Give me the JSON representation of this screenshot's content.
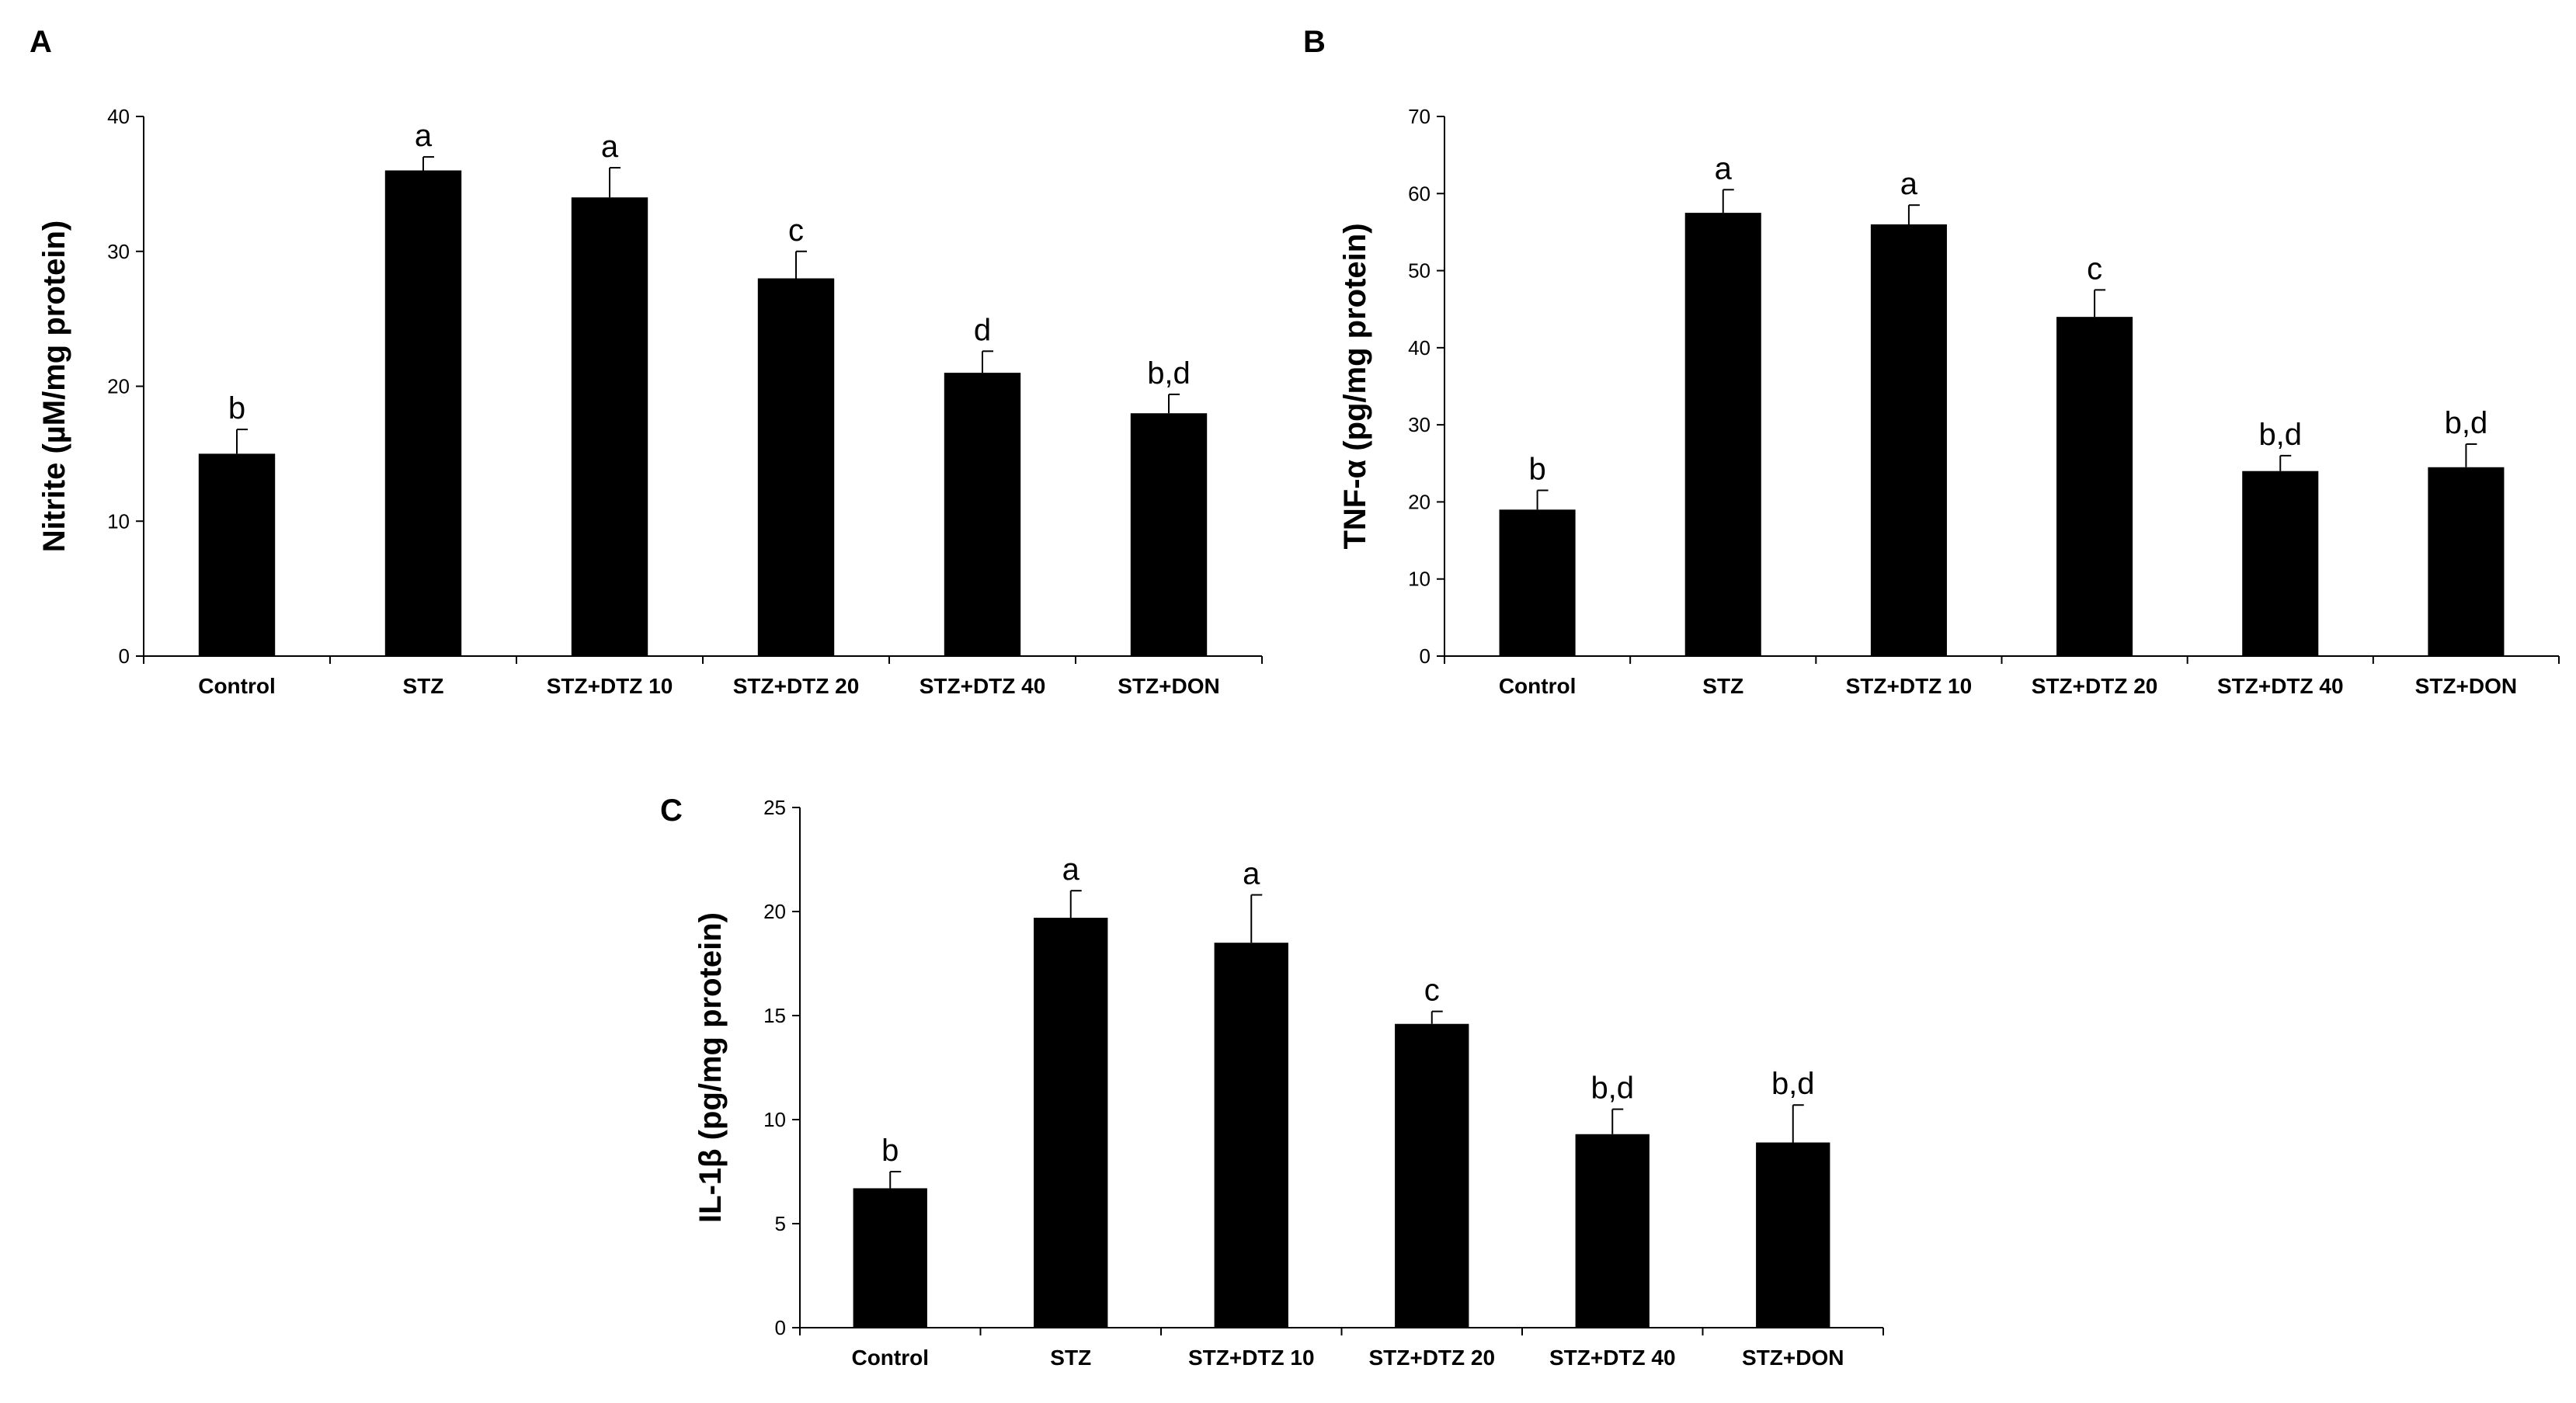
{
  "panels": [
    {
      "label": "A"
    },
    {
      "label": "B"
    },
    {
      "label": "C"
    }
  ],
  "chart_data": [
    {
      "type": "bar",
      "panel": "A",
      "categories": [
        "Control",
        "STZ",
        "STZ+DTZ 10",
        "STZ+DTZ 20",
        "STZ+DTZ 40",
        "STZ+DON"
      ],
      "values": [
        15,
        36,
        34,
        28,
        21,
        18
      ],
      "errors": [
        1.8,
        1.0,
        2.2,
        2.0,
        1.6,
        1.4
      ],
      "annotations": [
        "b",
        "a",
        "a",
        "c",
        "d",
        "b,d"
      ],
      "ylabel": "Nitrite (µM/mg protein)",
      "ylim": [
        0,
        40
      ],
      "yticks": [
        0,
        10,
        20,
        30,
        40
      ],
      "bar_color": "#000000"
    },
    {
      "type": "bar",
      "panel": "B",
      "categories": [
        "Control",
        "STZ",
        "STZ+DTZ 10",
        "STZ+DTZ 20",
        "STZ+DTZ 40",
        "STZ+DON"
      ],
      "values": [
        19,
        57.5,
        56,
        44,
        24,
        24.5
      ],
      "errors": [
        2.5,
        3.0,
        2.5,
        3.5,
        2.0,
        3.0
      ],
      "annotations": [
        "b",
        "a",
        "a",
        "c",
        "b,d",
        "b,d"
      ],
      "ylabel": "TNF-α (pg/mg protein)",
      "ylim": [
        0,
        70
      ],
      "yticks": [
        0,
        10,
        20,
        30,
        40,
        50,
        60,
        70
      ],
      "bar_color": "#000000"
    },
    {
      "type": "bar",
      "panel": "C",
      "categories": [
        "Control",
        "STZ",
        "STZ+DTZ 10",
        "STZ+DTZ 20",
        "STZ+DTZ 40",
        "STZ+DON"
      ],
      "values": [
        6.7,
        19.7,
        18.5,
        14.6,
        9.3,
        8.9
      ],
      "errors": [
        0.8,
        1.3,
        2.3,
        0.6,
        1.2,
        1.8
      ],
      "annotations": [
        "b",
        "a",
        "a",
        "c",
        "b,d",
        "b,d"
      ],
      "ylabel": "IL-1β (pg/mg protein)",
      "ylim": [
        0,
        25
      ],
      "yticks": [
        0,
        5,
        10,
        15,
        20,
        25
      ],
      "bar_color": "#000000"
    }
  ]
}
